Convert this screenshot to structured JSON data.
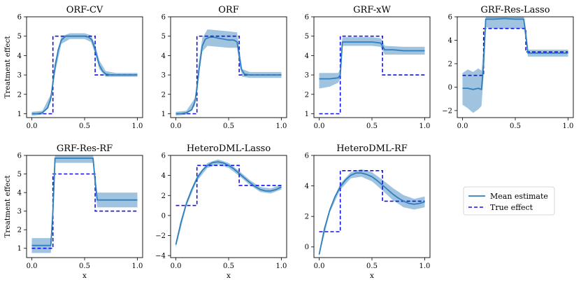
{
  "chart_data": {
    "type": "line",
    "xlabel": "x",
    "ylabel": "Treatment effect",
    "xticks": [
      "0.0",
      "0.5",
      "1.0"
    ],
    "legend": {
      "placement": "right",
      "entries": [
        "Mean estimate",
        "True effect"
      ]
    },
    "colors": {
      "mean": "#2f7fbd",
      "band": "#8fbadb",
      "truth": "#0f14e6"
    },
    "true_effect": {
      "x": [
        0.0,
        0.2,
        0.2,
        0.6,
        0.6,
        1.0
      ],
      "y": [
        1,
        1,
        5,
        5,
        3,
        3
      ]
    },
    "subplots": [
      {
        "title": "ORF-CV",
        "ylim": [
          0.8,
          6.0
        ],
        "yticks": [
          1,
          2,
          3,
          4,
          5,
          6
        ],
        "mean": {
          "x": [
            0,
            0.05,
            0.1,
            0.15,
            0.18,
            0.2,
            0.22,
            0.25,
            0.28,
            0.32,
            0.36,
            0.4,
            0.45,
            0.5,
            0.54,
            0.57,
            0.6,
            0.62,
            0.64,
            0.67,
            0.7,
            0.75,
            0.8,
            0.9,
            1.0
          ],
          "y": [
            1.0,
            1.0,
            1.05,
            1.3,
            1.8,
            2.6,
            3.4,
            4.3,
            4.8,
            5.0,
            5.0,
            5.0,
            5.0,
            5.0,
            4.95,
            4.8,
            4.3,
            3.9,
            3.5,
            3.2,
            3.05,
            3.0,
            3.0,
            3.0,
            3.0
          ]
        },
        "band": {
          "x": [
            0,
            0.1,
            0.18,
            0.22,
            0.28,
            0.36,
            0.5,
            0.56,
            0.6,
            0.64,
            0.7,
            0.8,
            1.0
          ],
          "lower": [
            0.9,
            0.95,
            1.6,
            3.1,
            4.6,
            4.85,
            4.85,
            4.7,
            4.1,
            3.3,
            2.9,
            2.9,
            2.9
          ],
          "upper": [
            1.1,
            1.15,
            2.0,
            3.7,
            5.0,
            5.15,
            5.15,
            5.05,
            4.55,
            3.75,
            3.2,
            3.1,
            3.1
          ]
        }
      },
      {
        "title": "ORF",
        "ylim": [
          0.8,
          6.0
        ],
        "yticks": [
          1,
          2,
          3,
          4,
          5,
          6
        ],
        "mean": {
          "x": [
            0,
            0.05,
            0.1,
            0.15,
            0.18,
            0.2,
            0.22,
            0.25,
            0.28,
            0.32,
            0.36,
            0.4,
            0.45,
            0.5,
            0.55,
            0.58,
            0.6,
            0.62,
            0.65,
            0.7,
            0.8,
            0.9,
            1.0
          ],
          "y": [
            1.0,
            1.0,
            1.05,
            1.2,
            1.6,
            2.3,
            3.3,
            4.5,
            4.85,
            4.95,
            4.95,
            4.9,
            4.85,
            4.8,
            4.8,
            4.7,
            4.0,
            3.3,
            3.05,
            3.0,
            3.0,
            3.0,
            3.0
          ]
        },
        "band": {
          "x": [
            0,
            0.1,
            0.18,
            0.22,
            0.25,
            0.3,
            0.4,
            0.5,
            0.58,
            0.6,
            0.63,
            0.7,
            1.0
          ],
          "lower": [
            0.9,
            0.95,
            1.4,
            3.0,
            4.2,
            4.5,
            4.45,
            4.4,
            4.4,
            3.7,
            2.9,
            2.85,
            2.85
          ],
          "upper": [
            1.1,
            1.15,
            1.8,
            3.7,
            4.9,
            5.35,
            5.3,
            5.25,
            5.2,
            4.4,
            3.3,
            3.15,
            3.15
          ]
        }
      },
      {
        "title": "GRF-xW",
        "ylim": [
          0.8,
          6.0
        ],
        "yticks": [
          1,
          2,
          3,
          4,
          5,
          6
        ],
        "mean": {
          "x": [
            0,
            0.1,
            0.18,
            0.2,
            0.22,
            0.3,
            0.4,
            0.5,
            0.58,
            0.6,
            0.62,
            0.7,
            0.8,
            0.9,
            1.0
          ],
          "y": [
            2.8,
            2.8,
            2.85,
            3.0,
            4.7,
            4.7,
            4.7,
            4.7,
            4.65,
            4.5,
            4.3,
            4.3,
            4.25,
            4.25,
            4.25
          ]
        },
        "band": {
          "x": [
            0,
            0.1,
            0.18,
            0.2,
            0.22,
            0.3,
            0.5,
            0.58,
            0.6,
            0.62,
            0.8,
            1.0
          ],
          "lower": [
            2.3,
            2.4,
            2.6,
            2.8,
            4.5,
            4.5,
            4.5,
            4.45,
            4.3,
            4.05,
            4.05,
            4.05
          ],
          "upper": [
            3.1,
            3.1,
            3.1,
            3.3,
            4.95,
            4.95,
            4.95,
            4.9,
            4.75,
            4.5,
            4.45,
            4.45
          ]
        }
      },
      {
        "title": "GRF-Res-Lasso",
        "ylim": [
          -2.6,
          6.0
        ],
        "yticks": [
          -2,
          0,
          2,
          4,
          6
        ],
        "mean": {
          "x": [
            0,
            0.05,
            0.1,
            0.15,
            0.18,
            0.2,
            0.22,
            0.3,
            0.4,
            0.5,
            0.58,
            0.6,
            0.62,
            0.7,
            0.8,
            0.9,
            1.0
          ],
          "y": [
            -0.1,
            -0.1,
            -0.2,
            -0.1,
            -0.2,
            2.0,
            5.8,
            5.8,
            5.85,
            5.8,
            5.8,
            4.5,
            2.9,
            2.9,
            2.9,
            2.9,
            2.9
          ]
        },
        "band": {
          "x": [
            0,
            0.05,
            0.1,
            0.15,
            0.18,
            0.2,
            0.22,
            0.3,
            0.5,
            0.58,
            0.6,
            0.62,
            0.8,
            1.0
          ],
          "lower": [
            -1.5,
            -1.8,
            -2.2,
            -1.9,
            -1.6,
            1.0,
            5.1,
            5.0,
            5.0,
            5.0,
            4.0,
            2.6,
            2.6,
            2.6
          ],
          "upper": [
            1.2,
            1.5,
            1.3,
            1.6,
            1.4,
            3.5,
            6.0,
            6.0,
            6.0,
            6.0,
            5.0,
            3.2,
            3.2,
            3.2
          ]
        }
      },
      {
        "title": "GRF-Res-RF",
        "ylim": [
          0.5,
          6.0
        ],
        "yticks": [
          1,
          2,
          3,
          4,
          5,
          6
        ],
        "mean": {
          "x": [
            0,
            0.1,
            0.18,
            0.2,
            0.22,
            0.3,
            0.4,
            0.5,
            0.58,
            0.6,
            0.62,
            0.7,
            0.8,
            0.9,
            1.0
          ],
          "y": [
            1.15,
            1.15,
            1.15,
            3.0,
            5.85,
            5.85,
            5.85,
            5.85,
            5.85,
            4.6,
            3.6,
            3.6,
            3.6,
            3.6,
            3.6
          ]
        },
        "band": {
          "x": [
            0,
            0.1,
            0.18,
            0.2,
            0.22,
            0.3,
            0.5,
            0.58,
            0.6,
            0.62,
            0.8,
            1.0
          ],
          "lower": [
            0.75,
            0.75,
            0.75,
            2.5,
            5.6,
            5.6,
            5.6,
            5.6,
            4.2,
            3.2,
            3.2,
            3.2
          ],
          "upper": [
            1.55,
            1.55,
            1.55,
            3.5,
            6.0,
            6.0,
            6.0,
            6.0,
            5.0,
            4.0,
            4.0,
            4.0
          ]
        }
      },
      {
        "title": "HeteroDML-Lasso",
        "ylim": [
          -4.2,
          6.0
        ],
        "yticks": [
          -4,
          -2,
          0,
          2,
          4,
          6
        ],
        "mean": {
          "x": [
            0,
            0.05,
            0.1,
            0.15,
            0.2,
            0.25,
            0.3,
            0.35,
            0.4,
            0.45,
            0.5,
            0.55,
            0.6,
            0.65,
            0.7,
            0.75,
            0.8,
            0.85,
            0.9,
            0.95,
            1.0
          ],
          "y": [
            -2.9,
            -0.6,
            1.2,
            2.6,
            3.7,
            4.5,
            5.0,
            5.3,
            5.35,
            5.25,
            5.0,
            4.65,
            4.2,
            3.75,
            3.3,
            2.9,
            2.6,
            2.45,
            2.45,
            2.6,
            2.85
          ]
        },
        "band": {
          "x": [
            0,
            0.1,
            0.2,
            0.3,
            0.4,
            0.5,
            0.6,
            0.7,
            0.8,
            0.9,
            1.0
          ],
          "lower": [
            -3.2,
            0.95,
            3.45,
            4.75,
            5.1,
            4.75,
            3.95,
            3.05,
            2.35,
            2.2,
            2.6
          ],
          "upper": [
            -2.6,
            1.45,
            3.95,
            5.25,
            5.6,
            5.25,
            4.45,
            3.55,
            2.85,
            2.7,
            3.1
          ]
        }
      },
      {
        "title": "HeteroDML-RF",
        "ylim": [
          -0.7,
          6.0
        ],
        "yticks": [
          0,
          2,
          4,
          6
        ],
        "mean": {
          "x": [
            0,
            0.05,
            0.1,
            0.15,
            0.2,
            0.25,
            0.3,
            0.35,
            0.4,
            0.45,
            0.5,
            0.55,
            0.6,
            0.65,
            0.7,
            0.75,
            0.8,
            0.85,
            0.9,
            0.95,
            1.0
          ],
          "y": [
            -0.5,
            1.2,
            2.4,
            3.3,
            3.95,
            4.4,
            4.7,
            4.85,
            4.85,
            4.75,
            4.6,
            4.35,
            4.05,
            3.75,
            3.45,
            3.2,
            3.0,
            2.85,
            2.8,
            2.85,
            2.95
          ]
        },
        "band": {
          "x": [
            0,
            0.1,
            0.2,
            0.3,
            0.4,
            0.5,
            0.6,
            0.7,
            0.8,
            0.9,
            1.0
          ],
          "lower": [
            -0.6,
            2.25,
            3.75,
            4.5,
            4.6,
            4.3,
            3.7,
            3.05,
            2.6,
            2.45,
            2.6
          ],
          "upper": [
            -0.4,
            2.55,
            4.15,
            4.9,
            5.1,
            4.9,
            4.4,
            3.85,
            3.4,
            3.15,
            3.3
          ]
        }
      }
    ]
  }
}
